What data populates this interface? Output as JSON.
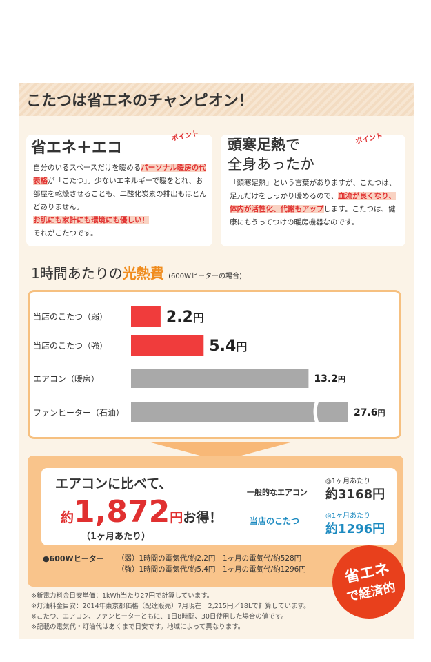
{
  "header": {
    "title": "こたつは省エネのチャンピオン！"
  },
  "points": [
    {
      "badge": "ポイント",
      "title": "省エネ＋エコ",
      "body": [
        "自分のいるスペースだけを暖める",
        "パーソナル暖房の代表格",
        "が「こたつ」。少ないエネルギーで暖をとれ、お部屋を乾燥させることも、二酸化炭素の排出もほとんどありません。",
        "お肌にも家計にも環境にも優しい！",
        "それがこたつです。"
      ]
    },
    {
      "badge": "ポイント",
      "title_bold": "頭寒足熱",
      "title_rest": "で",
      "title_line2": "全身あったか",
      "body": [
        "「頭寒足熱」という言葉がありますが、こたつは、足元だけをしっかり暖めるので、",
        "血流が良くなり、体内が活性化、代謝もアップ",
        "します。こたつは、健康にもうってつけの暖房機器なのです。"
      ]
    }
  ],
  "chart_data": {
    "type": "bar",
    "title": "1時間あたりの",
    "title_highlight": "光熱費",
    "subtitle": "(600Wヒーターの場合)",
    "categories": [
      "当店のこたつ（弱）",
      "当店のこたつ（強）",
      "エアコン（暖房）",
      "ファンヒーター（石油）"
    ],
    "values": [
      2.2,
      5.4,
      13.2,
      27.6
    ],
    "unit": "円",
    "colors": [
      "#f03c3c",
      "#f03c3c",
      "#a9a9a9",
      "#a9a9a9"
    ]
  },
  "savings": {
    "line1": "エアコンに比べて、",
    "prefix": "約",
    "amount": "1,872",
    "unit": "円",
    "suffix": "お得！",
    "note": "（1ヶ月あたり）",
    "compare": [
      {
        "label": "一般的なエアコン",
        "period": "◎1ヶ月あたり",
        "value": "約3168円"
      },
      {
        "label": "当店のこたつ",
        "period": "◎1ヶ月あたり",
        "value": "約1296円"
      }
    ],
    "heater": "●600Wヒーター",
    "heater_rows": [
      "（弱）1時間の電気代/約2.2円　1ヶ月の電気代/約528円",
      "（強）1時間の電気代/約5.4円　1ヶ月の電気代/約1296円"
    ]
  },
  "badge": {
    "line1": "省エネ",
    "line2": "で経済的"
  },
  "footnotes": [
    "※新電力料金目安単価：1kWh当たり27円で計算しています。",
    "※灯油料金目安：2014年東京都価格（配達販売）7月現在　2,215円／18Lで計算しています。",
    "※こたつ、エアコン、ファンヒーターともに、1日8時間、30日使用した場合の値です。",
    "※記載の電気代・灯油代はあくまで目安です。地域によって異なります。"
  ]
}
